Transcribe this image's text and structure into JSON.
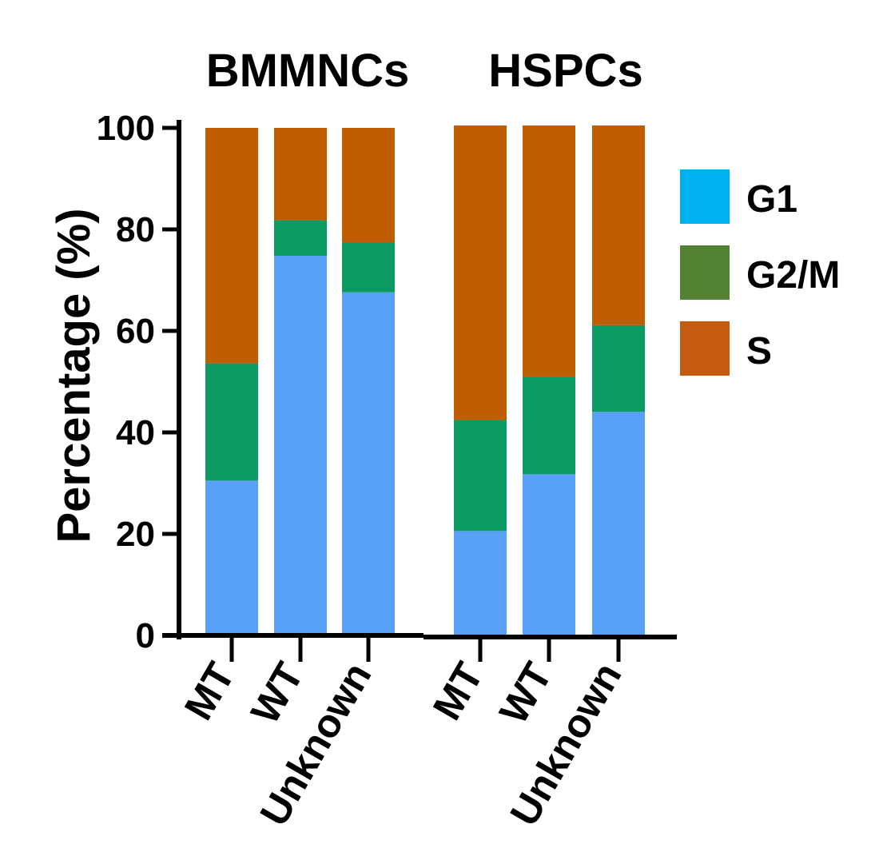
{
  "chart_data": {
    "type": "bar",
    "stacked": true,
    "ylabel": "Percentage (%)",
    "ylim": [
      0,
      100
    ],
    "yticks": [
      "0",
      "20",
      "40",
      "60",
      "80",
      "100"
    ],
    "groups": [
      {
        "title": "BMMNCs",
        "categories": [
          "MT",
          "WT",
          "Unknown"
        ]
      },
      {
        "title": "HSPCs",
        "categories": [
          "MT",
          "WT",
          "Unknown"
        ]
      }
    ],
    "series": [
      {
        "name": "G1",
        "color": "#58a0f8",
        "legend_color": "#00b0f0",
        "values": [
          30.5,
          74.8,
          67.6,
          20.6,
          31.8,
          44.1
        ]
      },
      {
        "name": "G2/M",
        "color": "#0c9a63",
        "legend_color": "#548235",
        "values": [
          23.1,
          7.0,
          9.8,
          21.9,
          19.2,
          17.1
        ]
      },
      {
        "name": "S",
        "color": "#c05d00",
        "legend_color": "#c55a11",
        "values": [
          46.4,
          18.2,
          22.6,
          58.1,
          49.6,
          39.4
        ]
      }
    ],
    "legend_position": "right",
    "grid": false
  }
}
